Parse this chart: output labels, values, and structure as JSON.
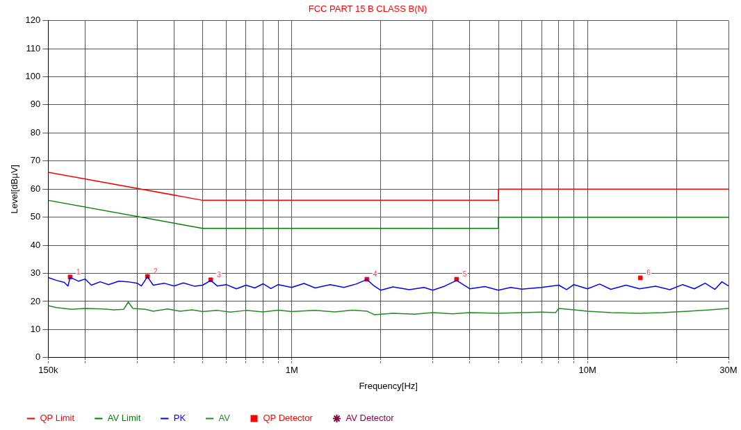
{
  "chart_data": {
    "type": "line",
    "title": "FCC PART 15 B CLASS B(N)",
    "xlabel": "Frequency[Hz]",
    "ylabel": "Level[dBµV]",
    "log": "x",
    "grid": true,
    "legend": "bottom left",
    "marker": "none",
    "line_style": "solid",
    "xlim": [
      150000,
      30000000
    ],
    "ylim": [
      0,
      120
    ],
    "xticks": [
      {
        "value": 150000,
        "label": "150k"
      },
      {
        "value": 200000,
        "label": null
      },
      {
        "value": 300000,
        "label": null
      },
      {
        "value": 400000,
        "label": null
      },
      {
        "value": 500000,
        "label": null
      },
      {
        "value": 600000,
        "label": null
      },
      {
        "value": 700000,
        "label": null
      },
      {
        "value": 800000,
        "label": null
      },
      {
        "value": 900000,
        "label": null
      },
      {
        "value": 1000000,
        "label": "1M"
      },
      {
        "value": 2000000,
        "label": null
      },
      {
        "value": 3000000,
        "label": null
      },
      {
        "value": 4000000,
        "label": null
      },
      {
        "value": 5000000,
        "label": null
      },
      {
        "value": 6000000,
        "label": null
      },
      {
        "value": 7000000,
        "label": null
      },
      {
        "value": 8000000,
        "label": null
      },
      {
        "value": 9000000,
        "label": null
      },
      {
        "value": 10000000,
        "label": "10M"
      },
      {
        "value": 20000000,
        "label": null
      },
      {
        "value": 30000000,
        "label": "30M"
      }
    ],
    "yticks": [
      0,
      10,
      20,
      30,
      40,
      50,
      60,
      70,
      80,
      90,
      100,
      110,
      120
    ],
    "series": [
      {
        "name": "QP Limit",
        "color": "#ff0000",
        "x": [
          150000,
          500000,
          5000000,
          5000000,
          30000000
        ],
        "values": [
          66,
          56,
          56,
          60,
          60
        ]
      },
      {
        "name": "AV Limit",
        "color": "#008000",
        "x": [
          150000,
          500000,
          5000000,
          5000000,
          30000000
        ],
        "values": [
          56,
          46,
          46,
          50,
          50
        ]
      },
      {
        "name": "PK",
        "color": "#0000ff",
        "x": [
          150000,
          160000,
          170000,
          175000,
          178000,
          190000,
          200000,
          210000,
          225000,
          240000,
          260000,
          280000,
          300000,
          310000,
          325000,
          340000,
          370000,
          400000,
          430000,
          470000,
          500000,
          532000,
          560000,
          600000,
          650000,
          700000,
          750000,
          800000,
          850000,
          900000,
          1000000,
          1100000,
          1200000,
          1350000,
          1500000,
          1650000,
          1795000,
          1900000,
          2000000,
          2200000,
          2500000,
          2800000,
          3000000,
          3300000,
          3610000,
          4000000,
          4500000,
          5000000,
          5500000,
          6000000,
          7000000,
          8000000,
          8500000,
          9000000,
          10000000,
          11000000,
          12000000,
          13500000,
          15000000,
          17000000,
          19000000,
          21000000,
          23000000,
          25000000,
          27000000,
          28500000,
          30000000
        ],
        "values": [
          28.5,
          27.5,
          26.8,
          25.5,
          28.6,
          27.2,
          28.0,
          25.8,
          27.0,
          26.0,
          27.2,
          27.0,
          26.5,
          25.5,
          28.8,
          25.8,
          26.5,
          25.5,
          26.6,
          25.4,
          25.8,
          27.5,
          25.5,
          26.0,
          24.5,
          25.8,
          24.8,
          26.3,
          24.6,
          26.0,
          25.0,
          26.4,
          24.8,
          26.0,
          25.0,
          26.2,
          27.8,
          25.5,
          24.0,
          25.2,
          24.2,
          25.0,
          24.0,
          25.5,
          27.5,
          24.5,
          25.3,
          24.0,
          25.0,
          24.4,
          25.0,
          25.8,
          24.2,
          26.0,
          24.5,
          26.2,
          24.3,
          25.8,
          24.5,
          25.4,
          24.2,
          26.0,
          24.5,
          26.5,
          24.3,
          27.0,
          25.5
        ]
      },
      {
        "name": "AV",
        "color": "#228b22",
        "x": [
          150000,
          160000,
          180000,
          200000,
          230000,
          250000,
          270000,
          280000,
          290000,
          320000,
          340000,
          380000,
          420000,
          460000,
          500000,
          560000,
          620000,
          700000,
          800000,
          900000,
          1000000,
          1200000,
          1400000,
          1600000,
          1800000,
          1900000,
          2200000,
          2600000,
          3000000,
          3500000,
          4000000,
          5000000,
          6000000,
          7000000,
          7800000,
          8000000,
          9000000,
          10000000,
          12000000,
          15000000,
          18000000,
          22000000,
          26000000,
          30000000
        ],
        "values": [
          18.5,
          17.8,
          17.2,
          17.5,
          17.3,
          17.0,
          17.2,
          19.8,
          17.5,
          17.2,
          16.5,
          17.3,
          16.5,
          17.0,
          16.4,
          16.8,
          16.2,
          16.8,
          16.3,
          16.9,
          16.4,
          16.8,
          16.3,
          16.9,
          16.5,
          15.3,
          15.8,
          15.5,
          16.0,
          15.6,
          16.0,
          15.8,
          16.0,
          16.2,
          16.0,
          17.5,
          17.0,
          16.5,
          16.0,
          15.8,
          16.0,
          16.5,
          17.0,
          17.5
        ]
      },
      {
        "name": "QP Detector",
        "type": "scatter",
        "marker": "square",
        "color": "#ff0000",
        "x": [
          178000,
          325000,
          532000,
          1795000,
          3610000,
          15100000
        ],
        "values": [
          28.7,
          28.9,
          27.7,
          27.9,
          27.9,
          28.4
        ]
      },
      {
        "name": "AV Detector",
        "type": "scatter",
        "marker": "star",
        "color": "#8b0045"
      }
    ],
    "annotations": [
      {
        "text": "1",
        "x": 178000,
        "y": 28.7
      },
      {
        "text": "2",
        "x": 325000,
        "y": 28.9
      },
      {
        "text": "3",
        "x": 532000,
        "y": 27.7
      },
      {
        "text": "4",
        "x": 1795000,
        "y": 27.9
      },
      {
        "text": "5",
        "x": 3610000,
        "y": 27.9
      },
      {
        "text": "6",
        "x": 15100000,
        "y": 28.4
      }
    ]
  }
}
